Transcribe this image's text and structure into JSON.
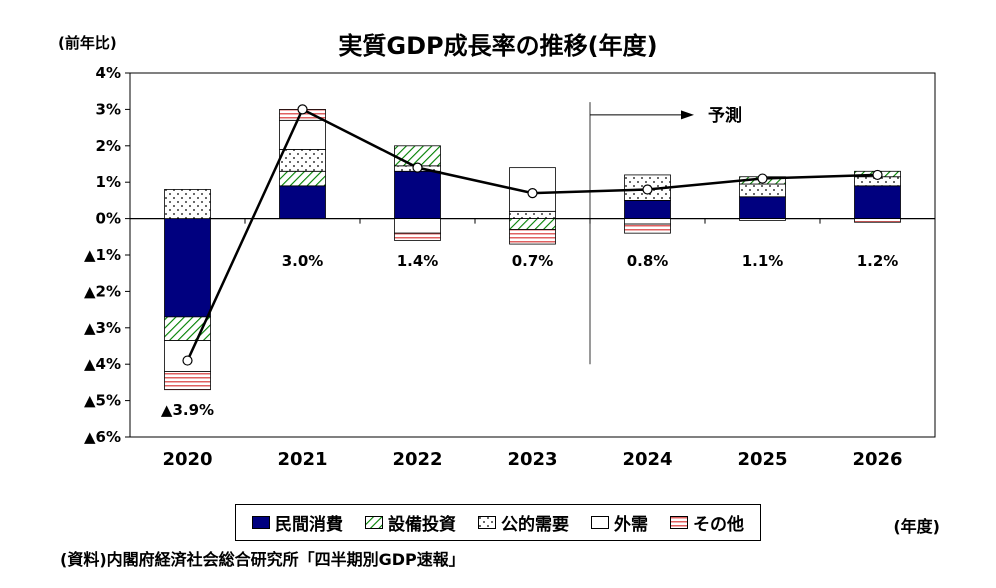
{
  "chart_data": {
    "type": "bar",
    "subtype": "stacked-bar-with-line",
    "title": "実質GDP成長率の推移(年度)",
    "y_axis_unit": "(前年比)",
    "x_axis_unit": "(年度)",
    "source": "(資料)内閣府経済社会総合研究所「四半期別GDP速報」",
    "forecast_annotation": "予測",
    "forecast_boundary_after": "2023",
    "categories": [
      "2020",
      "2021",
      "2022",
      "2023",
      "2024",
      "2025",
      "2026"
    ],
    "ylim": [
      -6,
      4
    ],
    "grid": "off",
    "legend_position": "bottom",
    "y_ticks": [
      {
        "value": 4,
        "label": "4%"
      },
      {
        "value": 3,
        "label": "3%"
      },
      {
        "value": 2,
        "label": "2%"
      },
      {
        "value": 1,
        "label": "1%"
      },
      {
        "value": 0,
        "label": "0%"
      },
      {
        "value": -1,
        "label": "▲1%"
      },
      {
        "value": -2,
        "label": "▲2%"
      },
      {
        "value": -3,
        "label": "▲3%"
      },
      {
        "value": -4,
        "label": "▲4%"
      },
      {
        "value": -5,
        "label": "▲5%"
      },
      {
        "value": -6,
        "label": "▲6%"
      }
    ],
    "line_series": {
      "name": "実質GDP成長率(前年比)",
      "values": [
        -3.9,
        3.0,
        1.4,
        0.7,
        0.8,
        1.1,
        1.2
      ]
    },
    "total_labels": [
      "▲3.9%",
      "3.0%",
      "1.4%",
      "0.7%",
      "0.8%",
      "1.1%",
      "1.2%"
    ],
    "components": [
      {
        "key": "private-consumption",
        "name": "民間消費",
        "style": "solid-navy",
        "color": "#00007F"
      },
      {
        "key": "capital-investment",
        "name": "設備投資",
        "style": "green-hatch",
        "color": "#008000"
      },
      {
        "key": "public-demand",
        "name": "公的需要",
        "style": "dots",
        "color": "#000000"
      },
      {
        "key": "external-demand",
        "name": "外需",
        "style": "white",
        "color": "#FFFFFF"
      },
      {
        "key": "others",
        "name": "その他",
        "style": "red-stripes",
        "color": "#E06060"
      }
    ],
    "bars": [
      {
        "category": "2020",
        "segments": [
          {
            "component": "民間消費",
            "value": -2.7
          },
          {
            "component": "設備投資",
            "value": -0.65
          },
          {
            "component": "外需",
            "value": -0.85
          },
          {
            "component": "その他",
            "value": -0.5
          },
          {
            "component": "公的需要",
            "value": 0.8
          }
        ]
      },
      {
        "category": "2021",
        "segments": [
          {
            "component": "民間消費",
            "value": 0.9
          },
          {
            "component": "設備投資",
            "value": 0.4
          },
          {
            "component": "公的需要",
            "value": 0.6
          },
          {
            "component": "外需",
            "value": 0.8
          },
          {
            "component": "その他",
            "value": 0.3
          }
        ]
      },
      {
        "category": "2022",
        "segments": [
          {
            "component": "民間消費",
            "value": 1.3
          },
          {
            "component": "公的需要",
            "value": 0.15
          },
          {
            "component": "設備投資",
            "value": 0.55
          },
          {
            "component": "外需",
            "value": -0.4
          },
          {
            "component": "その他",
            "value": -0.2
          }
        ]
      },
      {
        "category": "2023",
        "segments": [
          {
            "component": "公的需要",
            "value": 0.2
          },
          {
            "component": "外需",
            "value": 1.2
          },
          {
            "component": "設備投資",
            "value": -0.3
          },
          {
            "component": "その他",
            "value": -0.4
          }
        ]
      },
      {
        "category": "2024",
        "segments": [
          {
            "component": "民間消費",
            "value": 0.5
          },
          {
            "component": "公的需要",
            "value": 0.7
          },
          {
            "component": "外需",
            "value": -0.15
          },
          {
            "component": "その他",
            "value": -0.25
          }
        ]
      },
      {
        "category": "2025",
        "segments": [
          {
            "component": "民間消費",
            "value": 0.6
          },
          {
            "component": "公的需要",
            "value": 0.35
          },
          {
            "component": "設備投資",
            "value": 0.2
          },
          {
            "component": "その他",
            "value": -0.05
          }
        ]
      },
      {
        "category": "2026",
        "segments": [
          {
            "component": "民間消費",
            "value": 0.9
          },
          {
            "component": "公的需要",
            "value": 0.25
          },
          {
            "component": "設備投資",
            "value": 0.15
          },
          {
            "component": "その他",
            "value": -0.1
          }
        ]
      }
    ]
  }
}
